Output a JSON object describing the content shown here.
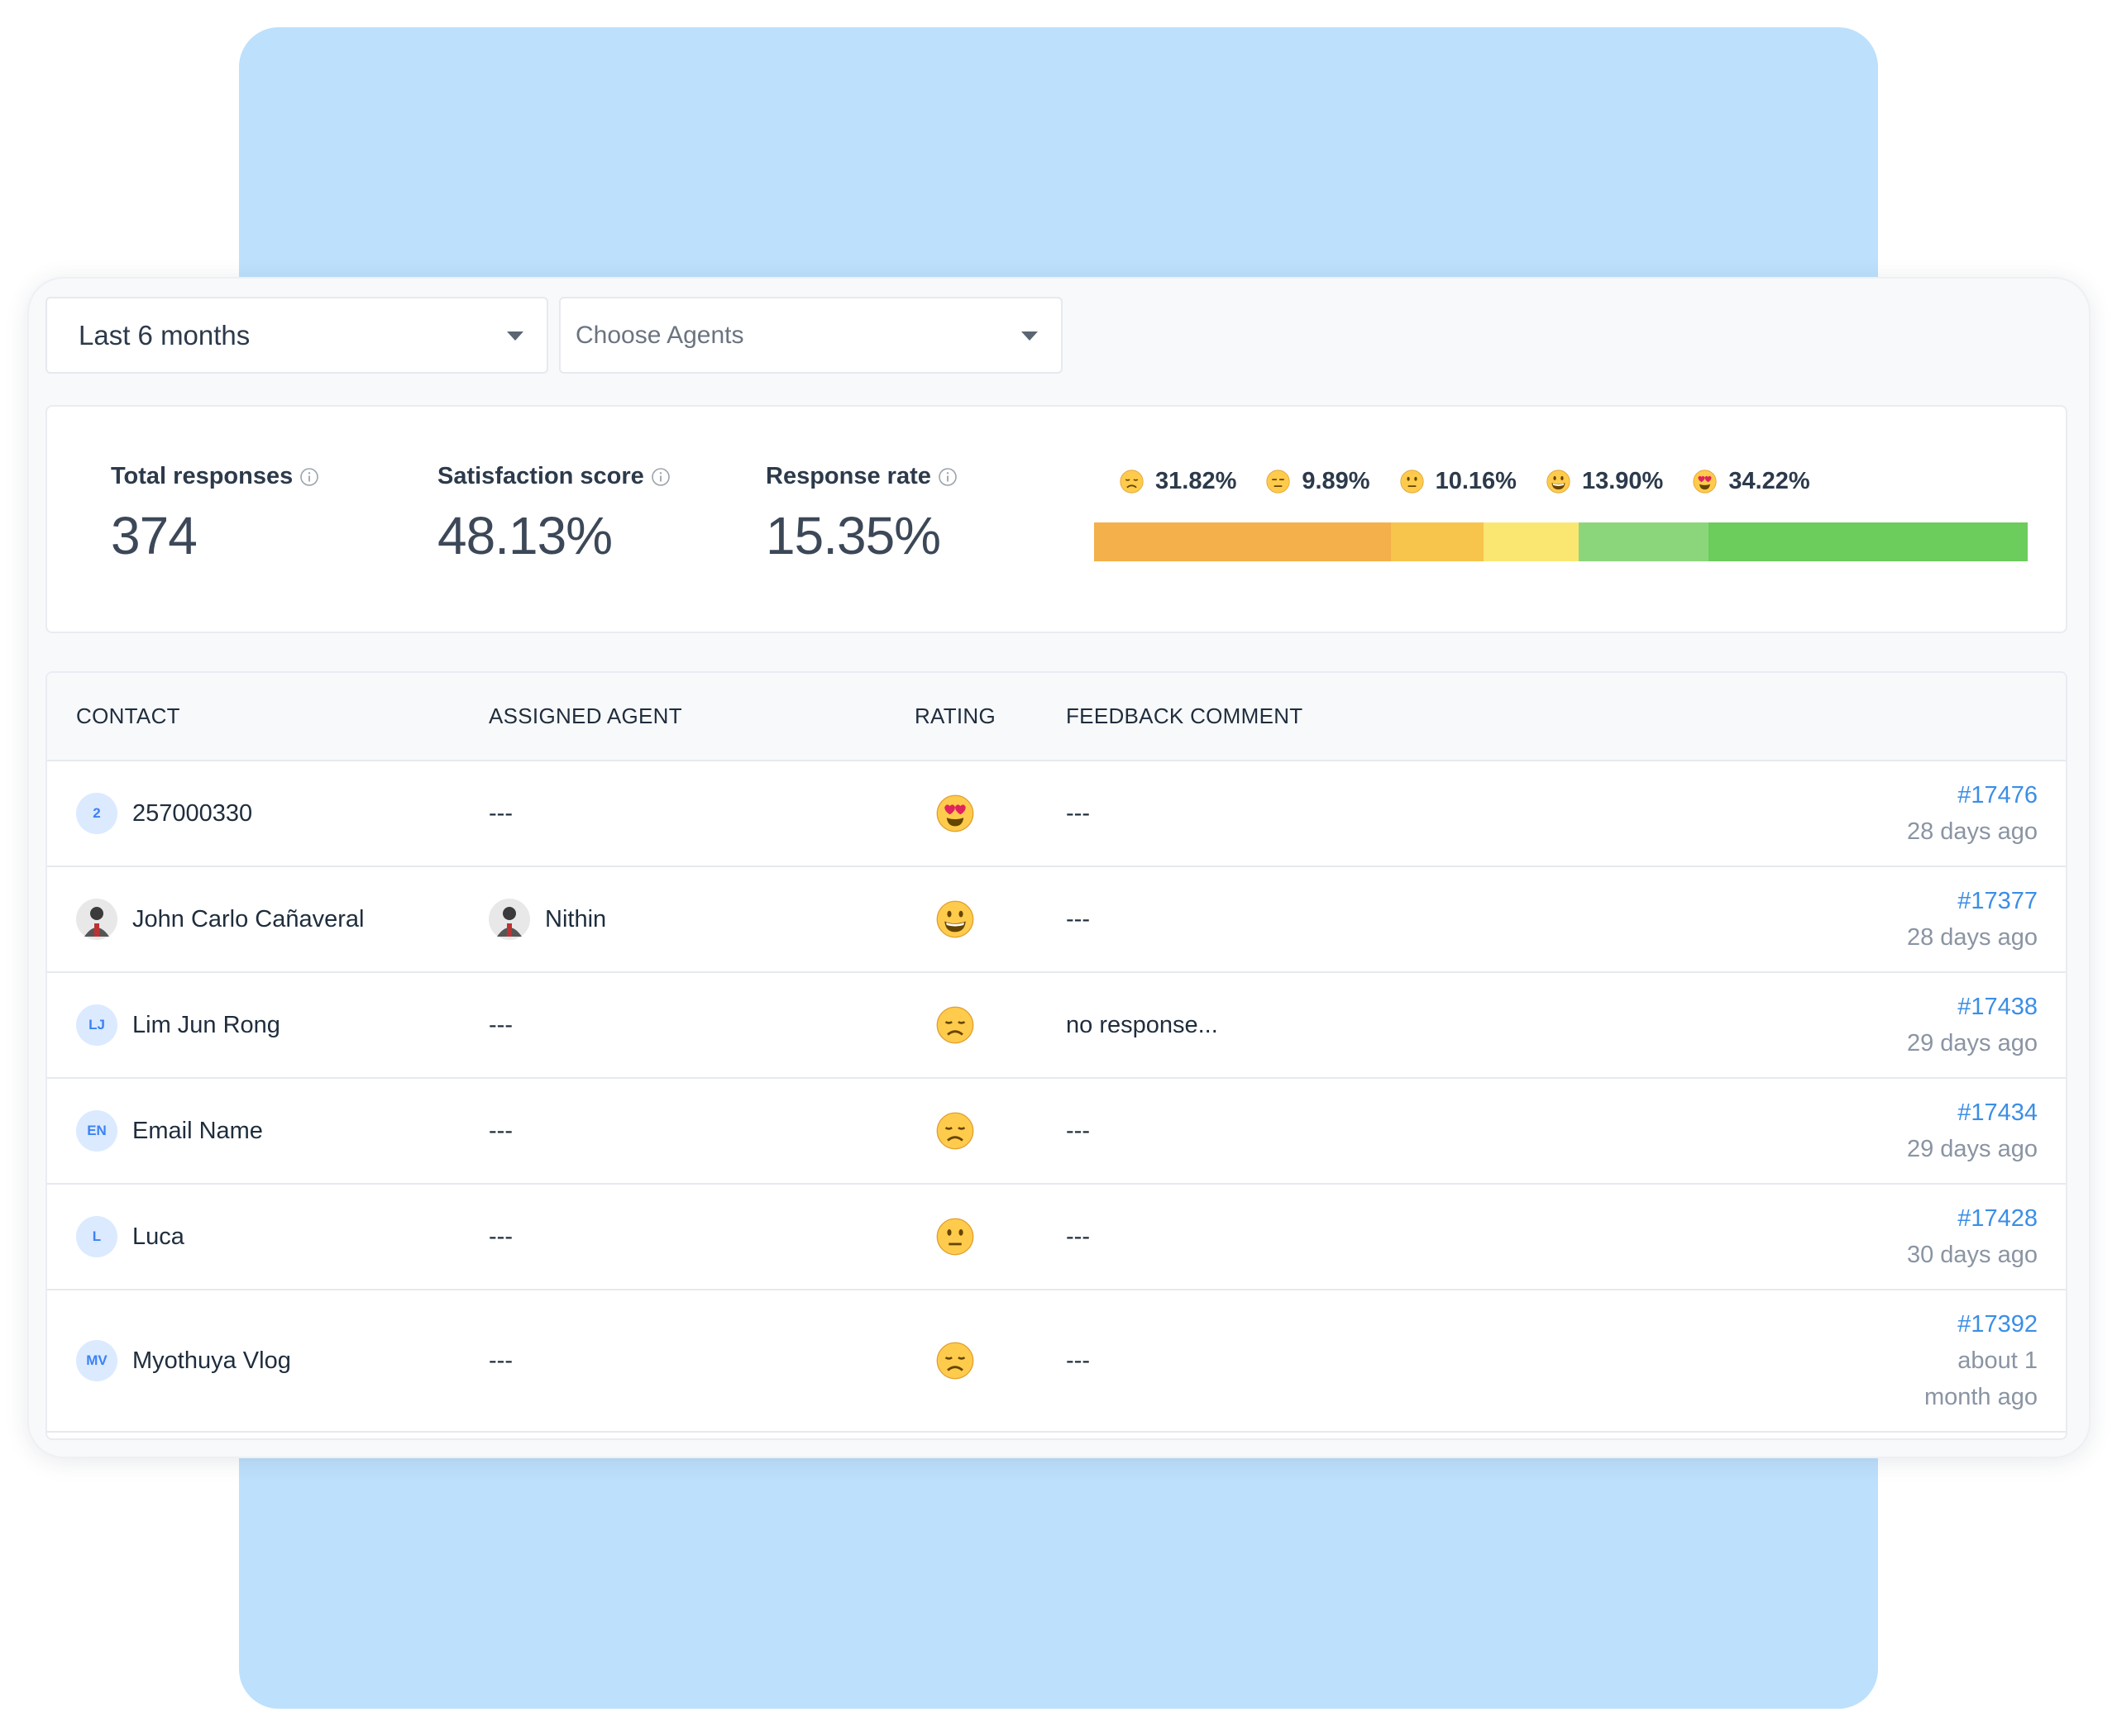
{
  "filters": {
    "period": "Last 6 months",
    "agents": "Choose Agents"
  },
  "stats": [
    {
      "label": "Total responses",
      "value": "374"
    },
    {
      "label": "Satisfaction score",
      "value": "48.13%"
    },
    {
      "label": "Response rate",
      "value": "15.35%"
    }
  ],
  "ratings": [
    {
      "value": 31.82,
      "label": "31.82%",
      "color": "#f4b04a"
    },
    {
      "value": 9.89,
      "label": "9.89%",
      "color": "#f7c44c"
    },
    {
      "value": 10.16,
      "label": "10.16%",
      "color": "#f9e772"
    },
    {
      "value": 13.9,
      "label": "13.90%",
      "color": "#8bd67a"
    },
    {
      "value": 34.22,
      "label": "34.22%",
      "color": "#6ccc5c"
    }
  ],
  "table": {
    "columns": [
      "CONTACT",
      "ASSIGNED AGENT",
      "RATING",
      "FEEDBACK COMMENT"
    ],
    "rows": [
      {
        "avatar": "2",
        "contact": "257000330",
        "agent": "---",
        "comment": "---",
        "ticket": "#17476",
        "time": "28 days ago"
      },
      {
        "contact": "John Carlo Cañaveral",
        "agent": "Nithin",
        "comment": "---",
        "ticket": "#17377",
        "time": "28 days ago"
      },
      {
        "avatar": "LJ",
        "contact": "Lim Jun Rong",
        "agent": "---",
        "comment": "no response...",
        "ticket": "#17438",
        "time": "29 days ago"
      },
      {
        "avatar": "EN",
        "contact": "Email Name",
        "agent": "---",
        "comment": "---",
        "ticket": "#17434",
        "time": "29 days ago"
      },
      {
        "avatar": "L",
        "contact": "Luca",
        "agent": "---",
        "comment": "---",
        "ticket": "#17428",
        "time": "30 days ago"
      },
      {
        "avatar": "MV",
        "contact": "Myothuya Vlog",
        "agent": "---",
        "comment": "---",
        "ticket": "#17392",
        "time": "about 1 month ago"
      }
    ]
  }
}
